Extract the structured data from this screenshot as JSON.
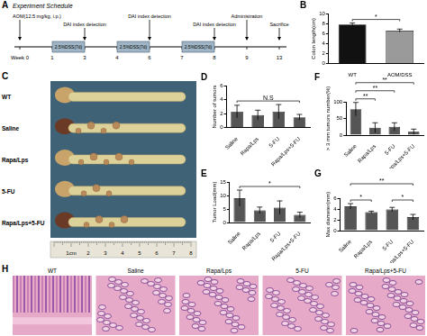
{
  "schedule": {
    "panel": "A",
    "title": "Experiment Schedule",
    "ticks": [
      {
        "value": 0,
        "label": "Week 0"
      },
      1,
      3,
      4,
      6,
      7,
      8,
      9,
      13
    ],
    "dss": {
      "label": "2.5%DSS(7d)",
      "spans": [
        [
          1,
          3
        ],
        [
          4,
          6
        ],
        [
          7,
          8
        ]
      ]
    },
    "events": [
      {
        "week": 0,
        "label": "AOM(12.5 mg/kg, i.p.)"
      },
      {
        "week": 3,
        "label": "DAI index detection"
      },
      {
        "week": 6,
        "label": "DAI index detection"
      },
      {
        "week": 8,
        "label": "DAI index detection"
      },
      {
        "week": 9,
        "label": "Administration"
      },
      {
        "week": 13,
        "label": "Sacrifice"
      }
    ]
  },
  "chart_data": [
    {
      "panel": "B",
      "type": "bar",
      "categories": [
        "WT",
        "AOM/DSS"
      ],
      "values": [
        7.8,
        6.6
      ],
      "errors": [
        0.3,
        0.3
      ],
      "colors": [
        "#111111",
        "#9a9a9a"
      ],
      "y_label": "Colon length(cm)",
      "ylim": [
        0,
        10
      ],
      "yticks": [
        0,
        2,
        4,
        6,
        8,
        10
      ],
      "grid": false,
      "annotations": [
        {
          "from": "WT",
          "to": "AOM/DSS",
          "text": "*"
        }
      ]
    },
    {
      "panel": "D",
      "type": "bar",
      "categories": [
        "Saline",
        "Rapa/Lps",
        "5-FU",
        "Rapa/Lps+5-FU"
      ],
      "values": [
        2.3,
        1.8,
        2.3,
        1.5
      ],
      "errors": [
        0.9,
        0.7,
        1.0,
        0.4
      ],
      "color": "#555555",
      "y_label": "Number of tumors",
      "ylim": [
        0,
        6
      ],
      "yticks": [
        0,
        2,
        4,
        6
      ],
      "grid": false,
      "annotations": [
        {
          "from": "Saline",
          "to": "Rapa/Lps+5-FU",
          "text": "N.S"
        }
      ]
    },
    {
      "panel": "E",
      "type": "bar",
      "categories": [
        "Saline",
        "Rapa/Lps",
        "5-FU",
        "Rapa/Lps+5-FU"
      ],
      "values": [
        9,
        4.5,
        5.5,
        2.8
      ],
      "errors": [
        3,
        1.2,
        2.5,
        1
      ],
      "color": "#555555",
      "y_label": "Tumor Load(mm)",
      "ylim": [
        0,
        15
      ],
      "yticks": [
        0,
        5,
        10,
        15
      ],
      "grid": false,
      "annotations": [
        {
          "from": "Saline",
          "to": "Rapa/Lps+5-FU",
          "text": "*"
        }
      ]
    },
    {
      "panel": "F",
      "type": "bar",
      "categories": [
        "Saline",
        "Rapa/Lps",
        "5-FU",
        "Rapa/Lps+5-FU"
      ],
      "values": [
        78,
        22,
        25,
        10
      ],
      "errors": [
        20,
        15,
        12,
        8
      ],
      "color": "#555555",
      "y_label": "> 3 mm tumors number(%)",
      "ylim": [
        0,
        100
      ],
      "yticks": [
        0,
        50,
        100
      ],
      "grid": false,
      "annotations": [
        {
          "from": "Saline",
          "to": "Rapa/Lps",
          "text": "**"
        },
        {
          "from": "Saline",
          "to": "5-FU",
          "text": "**"
        },
        {
          "from": "Saline",
          "to": "Rapa/Lps+5-FU",
          "text": "**"
        }
      ]
    },
    {
      "panel": "G",
      "type": "bar",
      "categories": [
        "Saline",
        "Rapa/Lps",
        "5-FU",
        "Rapa/Lps+5-FU"
      ],
      "values": [
        4.5,
        3.4,
        3.9,
        2.5
      ],
      "errors": [
        0.5,
        0.2,
        0.4,
        0.5
      ],
      "color": "#555555",
      "y_label": "Max diameter(mm)",
      "ylim": [
        0,
        6
      ],
      "yticks": [
        0,
        2,
        4,
        6
      ],
      "grid": false,
      "annotations": [
        {
          "from": "Saline",
          "to": "Rapa/Lps",
          "text": "*"
        },
        {
          "from": "5-FU",
          "to": "Rapa/Lps+5-FU",
          "text": "*"
        },
        {
          "from": "Saline",
          "to": "Rapa/Lps+5-FU",
          "text": "**"
        }
      ]
    }
  ],
  "photo": {
    "panel": "C",
    "rows": [
      "WT",
      "Saline",
      "Rapa/Lps",
      "5-FU",
      "Rapa/Lps+5-FU"
    ],
    "ruler": [
      {
        "value": 1,
        "label": "1cm"
      },
      2,
      3,
      4,
      5,
      6,
      7,
      8
    ]
  },
  "histology": {
    "panel": "H",
    "images": [
      "WT",
      "Saline",
      "Rapa/Lps",
      "5-FU",
      "Rapa/Lps+5-FU"
    ]
  }
}
